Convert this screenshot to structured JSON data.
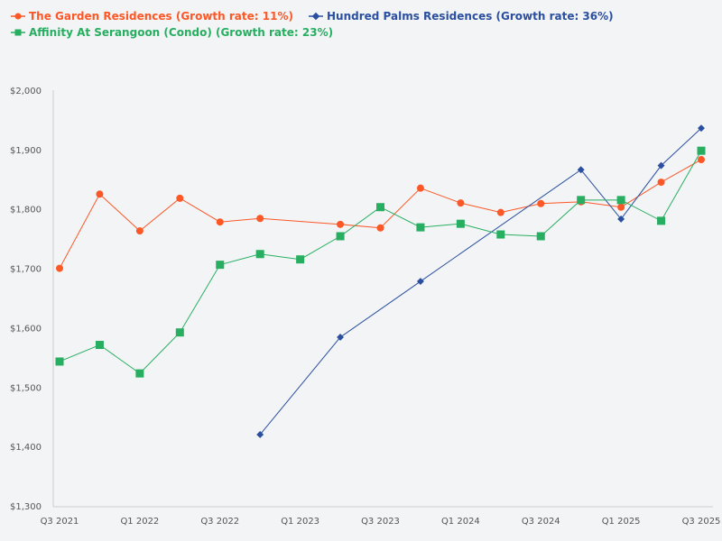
{
  "chart_data": {
    "type": "line",
    "categories": [
      "Q3 2021",
      "Q4 2021",
      "Q1 2022",
      "Q2 2022",
      "Q3 2022",
      "Q4 2022",
      "Q1 2023",
      "Q2 2023",
      "Q3 2023",
      "Q4 2023",
      "Q1 2024",
      "Q2 2024",
      "Q3 2024",
      "Q4 2024",
      "Q1 2025",
      "Q2 2025",
      "Q3 2025"
    ],
    "x_tick_labels": [
      "Q3 2021",
      "Q1 2022",
      "Q3 2022",
      "Q1 2023",
      "Q3 2023",
      "Q1 2024",
      "Q3 2024",
      "Q1 2025",
      "Q3 2025"
    ],
    "y_tick_labels": [
      "$2,000",
      "$1,900",
      "$1,800",
      "$1,700",
      "$1,600",
      "$1,500",
      "$1,400",
      "$1,300"
    ],
    "ylim": [
      1300,
      2000
    ],
    "grid": false,
    "legend_position": "top-left",
    "series": [
      {
        "name": "The Garden Residences (Growth rate: 11%)",
        "color": "#fc5726",
        "marker": "circle",
        "values": [
          1700,
          1825,
          1763,
          1818,
          1778,
          1784,
          null,
          1774,
          1768,
          1835,
          1810,
          1794,
          1809,
          1812,
          1803,
          1845,
          1883
        ]
      },
      {
        "name": "Hundred Palms Residences (Growth rate: 36%)",
        "color": "#2a4fa0",
        "marker": "diamond",
        "values": [
          null,
          null,
          null,
          null,
          null,
          1420,
          null,
          1584,
          null,
          1678,
          null,
          null,
          null,
          1866,
          1783,
          1873,
          1936
        ]
      },
      {
        "name": "Affinity At Serangoon (Condo) (Growth rate: 23%)",
        "color": "#27ae60",
        "marker": "square",
        "values": [
          1543,
          1571,
          1523,
          1592,
          1706,
          1724,
          1715,
          1754,
          1803,
          1769,
          1775,
          1757,
          1754,
          1815,
          1815,
          1780,
          1898
        ]
      }
    ]
  }
}
